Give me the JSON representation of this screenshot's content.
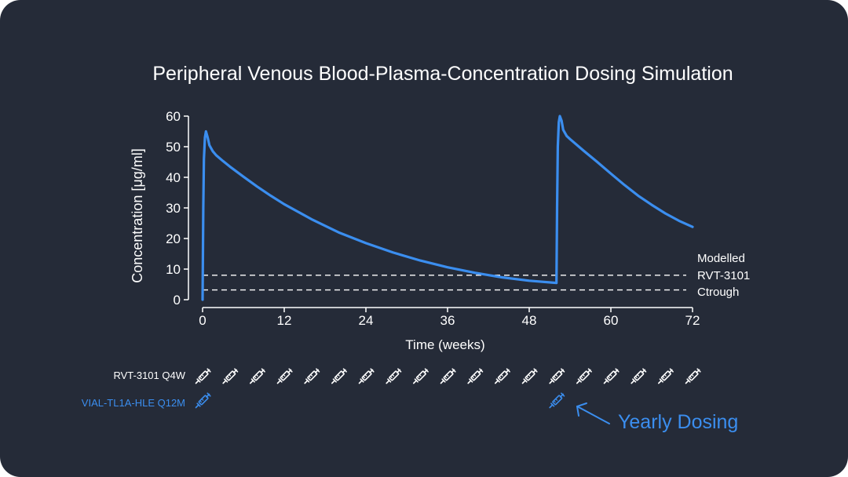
{
  "colors": {
    "background": "#252b38",
    "text": "#ffffff",
    "accent": "#3b8eef",
    "reference_line": "#ffffff"
  },
  "chart_data": {
    "type": "line",
    "title": "Peripheral Venous Blood-Plasma-Concentration Dosing Simulation",
    "xlabel": "Time (weeks)",
    "ylabel": "Concentration [μg/ml]",
    "xlim": [
      0,
      72
    ],
    "ylim": [
      0,
      60
    ],
    "xticks": [
      0,
      12,
      24,
      36,
      48,
      60,
      72
    ],
    "yticks": [
      0,
      10,
      20,
      30,
      40,
      50,
      60
    ],
    "grid": false,
    "series": [
      {
        "color": "#3b8eef",
        "points": [
          [
            0,
            0
          ],
          [
            0.1,
            30
          ],
          [
            0.2,
            46
          ],
          [
            0.35,
            53
          ],
          [
            0.5,
            55
          ],
          [
            0.75,
            53
          ],
          [
            1.0,
            50.5
          ],
          [
            1.5,
            48.5
          ],
          [
            2,
            47.2
          ],
          [
            3,
            45.3
          ],
          [
            4,
            43.5
          ],
          [
            6,
            40.2
          ],
          [
            8,
            37.0
          ],
          [
            10,
            34.0
          ],
          [
            12,
            31.2
          ],
          [
            16,
            26.3
          ],
          [
            20,
            22.0
          ],
          [
            24,
            18.5
          ],
          [
            28,
            15.4
          ],
          [
            32,
            12.8
          ],
          [
            36,
            10.6
          ],
          [
            40,
            8.8
          ],
          [
            44,
            7.3
          ],
          [
            48,
            6.2
          ],
          [
            52,
            5.5
          ],
          [
            52.1,
            30
          ],
          [
            52.2,
            50
          ],
          [
            52.35,
            58
          ],
          [
            52.5,
            60
          ],
          [
            52.75,
            58.5
          ],
          [
            53,
            55.5
          ],
          [
            53.5,
            53.5
          ],
          [
            54,
            52.5
          ],
          [
            56,
            48.7
          ],
          [
            58,
            45.0
          ],
          [
            60,
            41.2
          ],
          [
            62,
            37.5
          ],
          [
            64,
            34.0
          ],
          [
            66,
            31.0
          ],
          [
            68,
            28.2
          ],
          [
            70,
            25.8
          ],
          [
            72,
            23.8
          ]
        ]
      }
    ],
    "reference_lines": [
      {
        "y": 8,
        "style": "dashed"
      },
      {
        "y": 3.2,
        "style": "dashed"
      }
    ],
    "reference_label_lines": [
      "Modelled",
      "RVT-3101",
      "Ctrough"
    ]
  },
  "dosing": {
    "rows": [
      {
        "label": "RVT-3101 Q4W",
        "color": "#ffffff",
        "icon": "syringe-icon",
        "weeks": [
          0,
          4,
          8,
          12,
          16,
          20,
          24,
          28,
          32,
          36,
          40,
          44,
          48,
          52,
          56,
          60,
          64,
          68,
          72
        ]
      },
      {
        "label": "VIAL-TL1A-HLE Q12M",
        "color": "#3b8eef",
        "icon": "syringe-icon",
        "weeks": [
          0,
          52
        ]
      }
    ],
    "annotation": "Yearly Dosing",
    "annotation_color": "#3b8eef"
  }
}
